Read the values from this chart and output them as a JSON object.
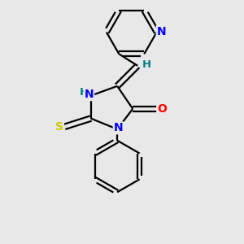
{
  "background_color": "#e8e8e8",
  "bond_color": "#000000",
  "atom_colors": {
    "N": "#0000ff",
    "O": "#ff0000",
    "S": "#cccc00",
    "H": "#008080",
    "C": "#000000"
  },
  "figsize": [
    3.0,
    3.0
  ],
  "dpi": 100
}
